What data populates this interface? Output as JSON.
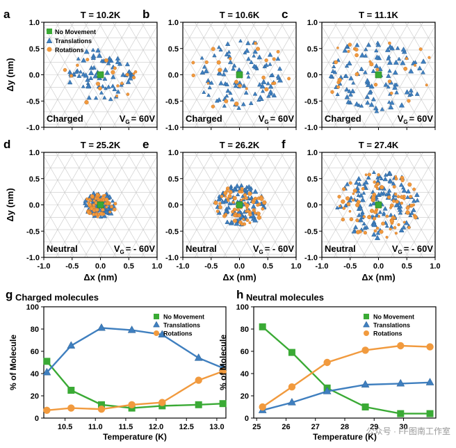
{
  "panels": [
    {
      "letter": "a",
      "title": "T = 10.2K",
      "state": "Charged",
      "vg_label": "V",
      "vg_sub": "G",
      "vg_value": "= 60V",
      "spread": 0.58,
      "density": 0.25
    },
    {
      "letter": "b",
      "title": "T = 10.6K",
      "state": "Charged",
      "vg_label": "V",
      "vg_sub": "G",
      "vg_value": "= 60V",
      "spread": 0.78,
      "density": 0.45
    },
    {
      "letter": "c",
      "title": "T = 11.1K",
      "state": "Charged",
      "vg_label": "V",
      "vg_sub": "G",
      "vg_value": "= 60V",
      "spread": 0.85,
      "density": 0.55
    },
    {
      "letter": "d",
      "title": "T = 25.2K",
      "state": "Neutral",
      "vg_label": "V",
      "vg_sub": "G",
      "vg_value": "= - 60V",
      "spread": 0.28,
      "density": 0.45
    },
    {
      "letter": "e",
      "title": "T = 26.2K",
      "state": "Neutral",
      "vg_label": "V",
      "vg_sub": "G",
      "vg_value": "= - 60V",
      "spread": 0.45,
      "density": 0.6
    },
    {
      "letter": "f",
      "title": "T = 27.4K",
      "state": "Neutral",
      "vg_label": "V",
      "vg_sub": "G",
      "vg_value": "= - 60V",
      "spread": 0.75,
      "density": 0.85
    }
  ],
  "scatter_axes": {
    "xlabel": "Δx (nm)",
    "ylabel": "Δy (nm)",
    "xticks": [
      "-1.0",
      "-0.5",
      "0.0",
      "0.5",
      "1.0"
    ],
    "yticks": [
      "1.0",
      "0.5",
      "0.0",
      "-0.5",
      "-1.0"
    ],
    "xlim": [
      -1.0,
      1.0
    ],
    "ylim": [
      -1.0,
      1.0
    ]
  },
  "scatter_legend": [
    "No Movement",
    "Translations",
    "Rotations"
  ],
  "colors": {
    "no_movement": "#3aaa35",
    "translations": "#3f7fbf",
    "rotations": "#f19a3e",
    "grid": "#c8c8c8"
  },
  "chart_data": [
    {
      "type": "line",
      "panel": "g",
      "title": "Charged molecules",
      "xlabel": "Temperature (K)",
      "ylabel": "% of Molecule",
      "xlim": [
        10.15,
        13.15
      ],
      "ylim": [
        0,
        100
      ],
      "xticks": [
        "10.5",
        "11.0",
        "11.5",
        "12.0",
        "12.5",
        "13.0"
      ],
      "xtick_values": [
        10.5,
        11.0,
        11.5,
        12.0,
        12.5,
        13.0
      ],
      "yticks": [
        "0",
        "20",
        "40",
        "60",
        "80",
        "100"
      ],
      "ytick_values": [
        0,
        20,
        40,
        60,
        80,
        100
      ],
      "legend": "top-right",
      "x": [
        10.2,
        10.6,
        11.1,
        11.6,
        12.1,
        12.7,
        13.1
      ],
      "series": [
        {
          "name": "No Movement",
          "marker": "square",
          "values": [
            51,
            25,
            12,
            9,
            11,
            12,
            13
          ]
        },
        {
          "name": "Translations",
          "marker": "triangle",
          "values": [
            41,
            65,
            81,
            79,
            75,
            54,
            45
          ]
        },
        {
          "name": "Rotations",
          "marker": "circle",
          "values": [
            7,
            9,
            8,
            12,
            14,
            34,
            42
          ]
        }
      ]
    },
    {
      "type": "line",
      "panel": "h",
      "title": "Neutral molecules",
      "xlabel": "Temperature (K)",
      "ylabel": "% of Molecule",
      "xlim": [
        24.9,
        31.1
      ],
      "ylim": [
        0,
        100
      ],
      "xticks": [
        "25",
        "26",
        "27",
        "28",
        "29",
        "30"
      ],
      "xtick_values": [
        25,
        26,
        27,
        28,
        29,
        30
      ],
      "yticks": [
        "0",
        "20",
        "40",
        "60",
        "80",
        "100"
      ],
      "ytick_values": [
        0,
        20,
        40,
        60,
        80,
        100
      ],
      "legend": "top-right",
      "x": [
        25.2,
        26.2,
        27.4,
        28.7,
        29.9,
        30.9
      ],
      "series": [
        {
          "name": "No Movement",
          "marker": "square",
          "values": [
            82,
            59,
            27,
            10,
            4,
            4
          ]
        },
        {
          "name": "Translations",
          "marker": "triangle",
          "values": [
            7,
            14,
            24,
            30,
            31,
            32
          ]
        },
        {
          "name": "Rotations",
          "marker": "circle",
          "values": [
            10,
            28,
            50,
            61,
            65,
            64
          ]
        }
      ]
    }
  ],
  "watermark": "公众号 · FF图南工作室"
}
